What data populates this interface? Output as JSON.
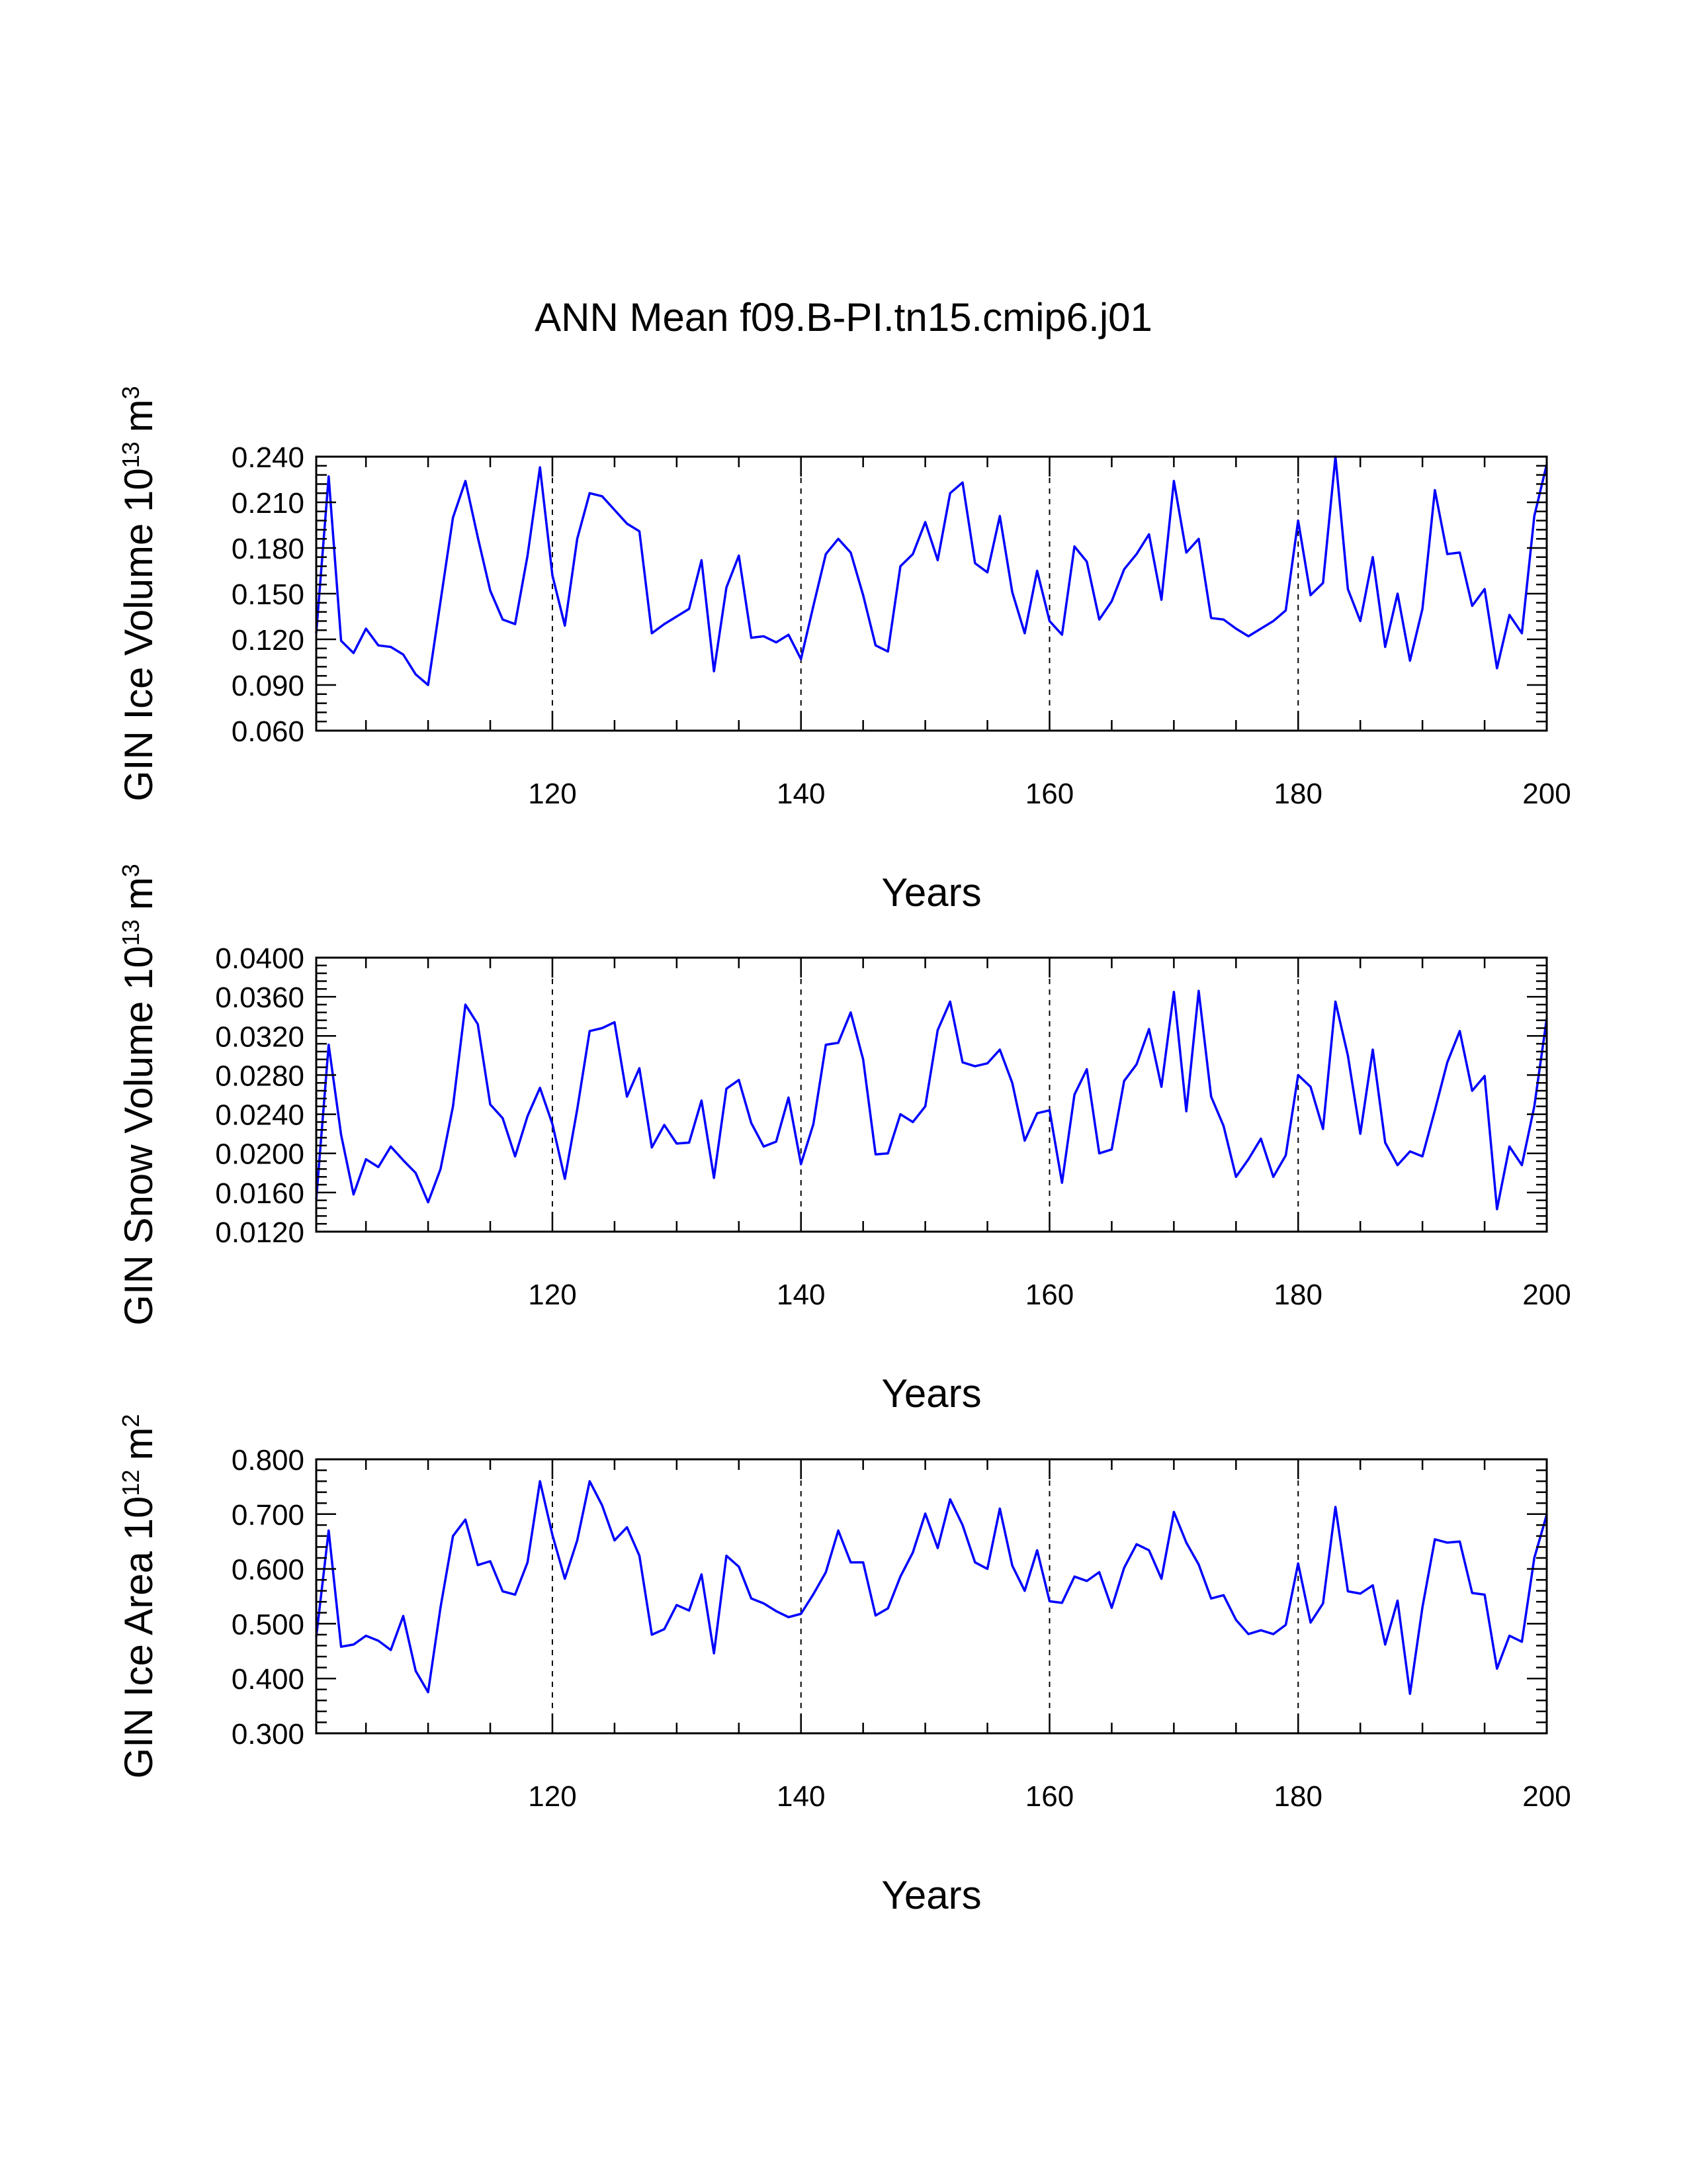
{
  "figure_title": "ANN Mean f09.B-PI.tn15.cmip6.j01",
  "colors": {
    "line": "#0000ff",
    "axes": "#000000",
    "background": "#ffffff"
  },
  "chart_data": [
    {
      "type": "line",
      "title": "ANN Mean f09.B-PI.tn15.cmip6.j01",
      "xlabel": "Years",
      "ylabel_main": "GIN Ice Volume 10",
      "ylabel_exponent": "13",
      "ylabel_unit": "m",
      "ylabel_unit_exponent": "3",
      "xlim": [
        101,
        200
      ],
      "ylim": [
        0.06,
        0.24
      ],
      "xticks": [
        120,
        140,
        160,
        180,
        200
      ],
      "yticks": [
        "0.060",
        "0.090",
        "0.120",
        "0.150",
        "0.180",
        "0.210",
        "0.240"
      ],
      "vlines": [
        120,
        140,
        160,
        180
      ],
      "x_start": 101,
      "values": [
        0.124,
        0.227,
        0.119,
        0.111,
        0.127,
        0.116,
        0.115,
        0.11,
        0.097,
        0.09,
        0.145,
        0.2,
        0.224,
        0.187,
        0.152,
        0.133,
        0.13,
        0.175,
        0.233,
        0.162,
        0.129,
        0.186,
        0.216,
        0.214,
        0.205,
        0.196,
        0.191,
        0.124,
        0.13,
        0.135,
        0.14,
        0.172,
        0.099,
        0.154,
        0.175,
        0.121,
        0.122,
        0.118,
        0.123,
        0.107,
        0.142,
        0.176,
        0.186,
        0.177,
        0.149,
        0.116,
        0.112,
        0.168,
        0.176,
        0.197,
        0.172,
        0.216,
        0.223,
        0.17,
        0.164,
        0.201,
        0.151,
        0.124,
        0.165,
        0.132,
        0.123,
        0.181,
        0.171,
        0.133,
        0.145,
        0.166,
        0.176,
        0.189,
        0.146,
        0.224,
        0.177,
        0.186,
        0.134,
        0.133,
        0.127,
        0.122,
        0.127,
        0.132,
        0.139,
        0.198,
        0.149,
        0.157,
        0.24,
        0.153,
        0.132,
        0.174,
        0.115,
        0.15,
        0.106,
        0.14,
        0.218,
        0.176,
        0.177,
        0.142,
        0.153,
        0.101,
        0.136,
        0.124,
        0.201,
        0.235
      ]
    },
    {
      "type": "line",
      "xlabel": "Years",
      "ylabel_main": "GIN Snow Volume 10",
      "ylabel_exponent": "13",
      "ylabel_unit": "m",
      "ylabel_unit_exponent": "3",
      "xlim": [
        101,
        200
      ],
      "ylim": [
        0.012,
        0.04
      ],
      "xticks": [
        120,
        140,
        160,
        180,
        200
      ],
      "yticks": [
        "0.0120",
        "0.0160",
        "0.0200",
        "0.0240",
        "0.0280",
        "0.0320",
        "0.0360",
        "0.0400"
      ],
      "vlines": [
        120,
        140,
        160,
        180
      ],
      "x_start": 101,
      "values": [
        0.0153,
        0.0311,
        0.0219,
        0.0158,
        0.0194,
        0.0186,
        0.0207,
        0.0193,
        0.018,
        0.015,
        0.0184,
        0.0248,
        0.0352,
        0.0332,
        0.025,
        0.0236,
        0.0197,
        0.0238,
        0.0267,
        0.023,
        0.0174,
        0.0245,
        0.0325,
        0.0328,
        0.0334,
        0.0258,
        0.0287,
        0.0206,
        0.0229,
        0.021,
        0.0211,
        0.0254,
        0.0175,
        0.0266,
        0.0275,
        0.0231,
        0.0207,
        0.0212,
        0.0257,
        0.0189,
        0.023,
        0.0311,
        0.0313,
        0.0344,
        0.0296,
        0.0199,
        0.02,
        0.024,
        0.0232,
        0.0248,
        0.0326,
        0.0355,
        0.0293,
        0.0289,
        0.0292,
        0.0306,
        0.0272,
        0.0213,
        0.0241,
        0.0244,
        0.017,
        0.026,
        0.0286,
        0.02,
        0.0204,
        0.0274,
        0.0291,
        0.0327,
        0.0268,
        0.0365,
        0.0243,
        0.0366,
        0.0258,
        0.0228,
        0.0176,
        0.0194,
        0.0215,
        0.0176,
        0.0198,
        0.028,
        0.0268,
        0.0225,
        0.0355,
        0.03,
        0.022,
        0.0306,
        0.0211,
        0.0188,
        0.0202,
        0.0197,
        0.0244,
        0.0293,
        0.0325,
        0.0264,
        0.0279,
        0.0143,
        0.0207,
        0.0188,
        0.0248,
        0.0338
      ]
    },
    {
      "type": "line",
      "xlabel": "Years",
      "ylabel_main": "GIN Ice Area 10",
      "ylabel_exponent": "12",
      "ylabel_unit": "m",
      "ylabel_unit_exponent": "2",
      "xlim": [
        101,
        200
      ],
      "ylim": [
        0.3,
        0.8
      ],
      "xticks": [
        120,
        140,
        160,
        180,
        200
      ],
      "yticks": [
        "0.300",
        "0.400",
        "0.500",
        "0.600",
        "0.700",
        "0.800"
      ],
      "vlines": [
        120,
        140,
        160,
        180
      ],
      "x_start": 101,
      "values": [
        0.476,
        0.67,
        0.458,
        0.462,
        0.478,
        0.469,
        0.452,
        0.514,
        0.414,
        0.375,
        0.53,
        0.66,
        0.69,
        0.607,
        0.614,
        0.559,
        0.553,
        0.612,
        0.76,
        0.662,
        0.582,
        0.652,
        0.76,
        0.716,
        0.652,
        0.676,
        0.624,
        0.48,
        0.49,
        0.534,
        0.524,
        0.59,
        0.446,
        0.624,
        0.604,
        0.546,
        0.537,
        0.523,
        0.512,
        0.518,
        0.554,
        0.594,
        0.67,
        0.612,
        0.612,
        0.515,
        0.528,
        0.586,
        0.63,
        0.701,
        0.638,
        0.727,
        0.68,
        0.612,
        0.6,
        0.71,
        0.606,
        0.56,
        0.634,
        0.541,
        0.538,
        0.586,
        0.578,
        0.594,
        0.529,
        0.602,
        0.645,
        0.634,
        0.582,
        0.704,
        0.648,
        0.608,
        0.546,
        0.552,
        0.507,
        0.481,
        0.488,
        0.481,
        0.498,
        0.61,
        0.502,
        0.537,
        0.713,
        0.559,
        0.555,
        0.57,
        0.462,
        0.542,
        0.372,
        0.53,
        0.654,
        0.648,
        0.65,
        0.556,
        0.553,
        0.418,
        0.478,
        0.467,
        0.62,
        0.699
      ]
    }
  ]
}
